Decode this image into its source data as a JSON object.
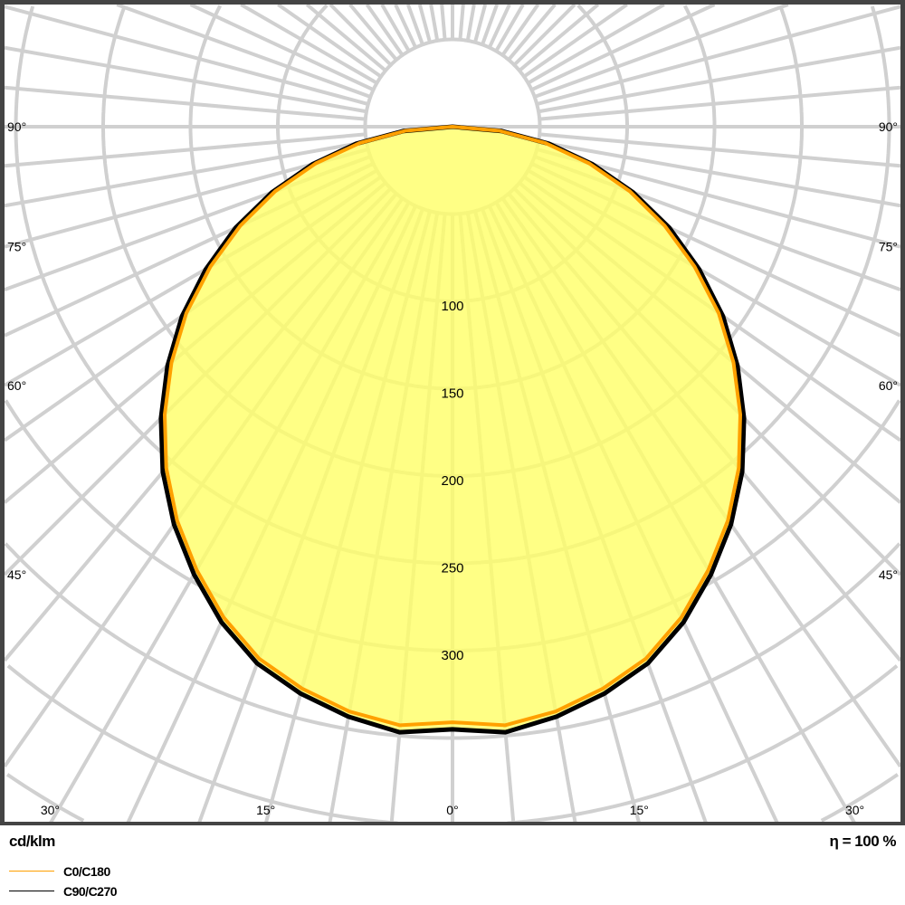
{
  "chart_data": {
    "type": "polar",
    "unit_label": "cd/klm",
    "efficiency_label": "η = 100 %",
    "radial_ticks": [
      50,
      100,
      150,
      200,
      250,
      300
    ],
    "radial_tick_labels": [
      "100",
      "150",
      "200",
      "250",
      "300"
    ],
    "radial_labeled_values": [
      100,
      150,
      200,
      250,
      300
    ],
    "angle_labels": [
      {
        "angle": 90,
        "text": "90°"
      },
      {
        "angle": 75,
        "text": "75°"
      },
      {
        "angle": 60,
        "text": "60°"
      },
      {
        "angle": 45,
        "text": "45°"
      },
      {
        "angle": 30,
        "text": "30°"
      },
      {
        "angle": 15,
        "text": "15°"
      },
      {
        "angle": 0,
        "text": "0°"
      }
    ],
    "gamma": [
      0,
      5,
      10,
      15,
      20,
      25,
      30,
      35,
      40,
      45,
      50,
      55,
      60,
      65,
      70,
      75,
      80,
      85,
      90
    ],
    "series": [
      {
        "name": "C0/C180",
        "color": "#ffa000",
        "values": [
          341,
          344,
          340,
          333,
          324,
          310,
          293,
          275,
          255,
          233,
          210,
          186,
          160,
          134,
          108,
          81,
          54,
          27,
          0
        ]
      },
      {
        "name": "C90/C270",
        "color": "#000000",
        "values": [
          345,
          348,
          343,
          336,
          327,
          313,
          296,
          278,
          258,
          236,
          213,
          189,
          163,
          137,
          110,
          83,
          56,
          28,
          0
        ]
      }
    ],
    "fill_color": "#ffff66",
    "grid": true,
    "grid_angle_step": 5
  }
}
